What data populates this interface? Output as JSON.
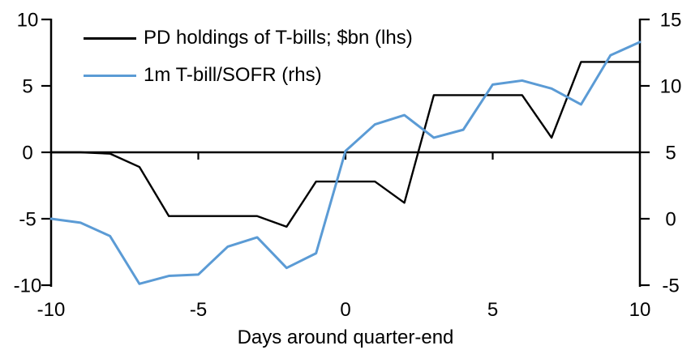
{
  "chart_data": {
    "type": "line",
    "x": [
      -10,
      -9,
      -8,
      -7,
      -6,
      -5,
      -4,
      -3,
      -2,
      -1,
      0,
      1,
      2,
      3,
      4,
      5,
      6,
      7,
      8,
      9,
      10
    ],
    "series": [
      {
        "name": "PD holdings of T-bills; $bn (lhs)",
        "axis": "left",
        "color": "#000000",
        "stroke_width": 2.4,
        "values": [
          0,
          0,
          -0.1,
          -1.1,
          -4.8,
          -4.8,
          -4.8,
          -4.8,
          -5.6,
          -2.2,
          -2.2,
          -2.2,
          -3.8,
          4.3,
          4.3,
          4.3,
          4.3,
          1.1,
          6.8,
          6.8,
          6.8
        ]
      },
      {
        "name": "1m T-bill/SOFR (rhs)",
        "axis": "right",
        "color": "#5B9BD5",
        "stroke_width": 3,
        "values": [
          0,
          -0.3,
          -1.3,
          -4.9,
          -4.3,
          -4.2,
          -2.1,
          -1.4,
          -3.7,
          -2.6,
          5.1,
          7.1,
          7.8,
          6.1,
          6.7,
          10.1,
          10.4,
          9.8,
          8.6,
          12.3,
          13.3
        ]
      }
    ],
    "title": "",
    "xlabel": "Days around quarter-end",
    "x_axis": {
      "range": [
        -10,
        10
      ],
      "ticks": [
        -10,
        -5,
        0,
        5,
        10
      ],
      "tick_labels": [
        "-10",
        "-5",
        "0",
        "5",
        "10"
      ]
    },
    "left_axis": {
      "range": [
        -10,
        10
      ],
      "ticks": [
        10,
        5,
        0,
        -5,
        -10
      ],
      "tick_labels": [
        "10",
        "5",
        "0",
        "-5",
        "-10"
      ]
    },
    "right_axis": {
      "range": [
        -5,
        15
      ],
      "ticks": [
        15,
        10,
        5,
        0,
        -5
      ],
      "tick_labels": [
        "15",
        "10",
        "5",
        "0",
        "-5"
      ]
    },
    "grid": false,
    "legend_position": "top-left",
    "axis_color": "#000000",
    "background_color": "#FFFFFF"
  }
}
